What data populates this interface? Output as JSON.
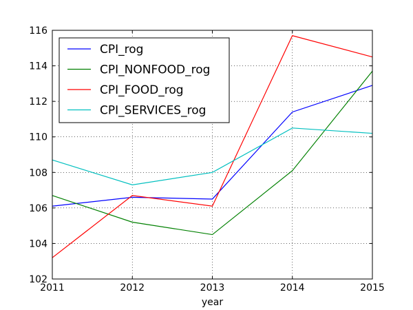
{
  "chart_data": {
    "type": "line",
    "x": [
      2011,
      2012,
      2013,
      2014,
      2015
    ],
    "series": [
      {
        "name": "CPI_rog",
        "color": "#0000ff",
        "values": [
          106.1,
          106.6,
          106.5,
          111.4,
          112.9
        ]
      },
      {
        "name": "CPI_NONFOOD_rog",
        "color": "#008000",
        "values": [
          106.7,
          105.2,
          104.5,
          108.1,
          113.7
        ]
      },
      {
        "name": "CPI_FOOD_rog",
        "color": "#ff0000",
        "values": [
          103.2,
          106.7,
          106.1,
          115.7,
          114.5
        ]
      },
      {
        "name": "CPI_SERVICES_rog",
        "color": "#00bfbf",
        "values": [
          108.7,
          107.3,
          108.0,
          110.5,
          110.2
        ]
      }
    ],
    "xlabel": "year",
    "ylabel": "",
    "title": "",
    "xlim": [
      2011,
      2015
    ],
    "ylim": [
      102,
      116
    ],
    "xticks": [
      "2011",
      "2012",
      "2013",
      "2014",
      "2015"
    ],
    "yticks": [
      "102",
      "104",
      "106",
      "108",
      "110",
      "112",
      "114",
      "116"
    ],
    "grid": true,
    "legend_position": "top-left"
  }
}
